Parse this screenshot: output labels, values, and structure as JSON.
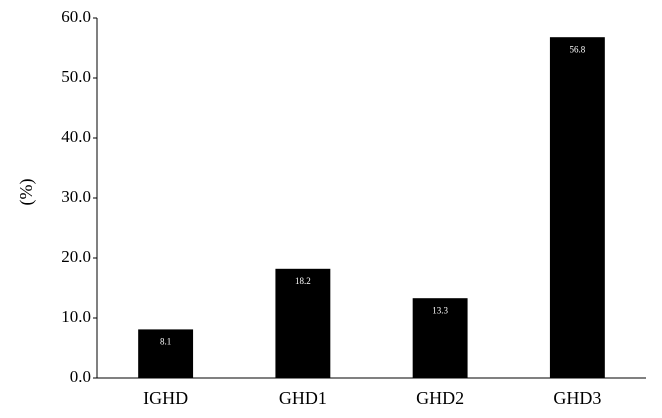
{
  "chart_data": {
    "type": "bar",
    "y_label": "(%)",
    "categories": [
      "IGHD",
      "GHD1",
      "GHD2",
      "GHD3"
    ],
    "values": [
      8.1,
      18.2,
      13.3,
      56.8
    ],
    "color": "#000000",
    "ylim": [
      0,
      60
    ],
    "yticks": [
      {
        "value": 0,
        "label": "0.0"
      },
      {
        "value": 10,
        "label": "10.0"
      },
      {
        "value": 20,
        "label": "20.0"
      },
      {
        "value": 30,
        "label": "30.0"
      },
      {
        "value": 40,
        "label": "40.0"
      },
      {
        "value": 50,
        "label": "50.0"
      },
      {
        "value": 60,
        "label": "60.0"
      }
    ],
    "grid": false
  }
}
